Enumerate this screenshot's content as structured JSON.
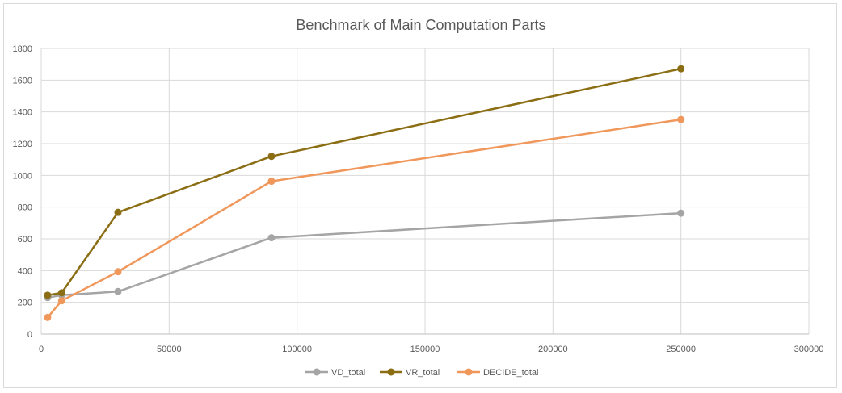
{
  "chart_data": {
    "type": "line",
    "title": "Benchmark of Main Computation Parts",
    "xlabel": "",
    "ylabel": "",
    "xlim": [
      0,
      300000
    ],
    "ylim": [
      0,
      1800
    ],
    "x_ticks": [
      "0",
      "50000",
      "100000",
      "150000",
      "200000",
      "250000",
      "300000"
    ],
    "y_ticks": [
      "0",
      "200",
      "400",
      "600",
      "800",
      "1000",
      "1200",
      "1400",
      "1600",
      "1800"
    ],
    "grid": true,
    "legend_position": "bottom",
    "x": [
      2500,
      8000,
      30000,
      90000,
      250000
    ],
    "series": [
      {
        "name": "VD_total",
        "color": "#a5a5a5",
        "values": [
          230,
          245,
          268,
          607,
          762
        ]
      },
      {
        "name": "VR_total",
        "color": "#8b6e14",
        "values": [
          245,
          260,
          767,
          1120,
          1672
        ]
      },
      {
        "name": "DECIDE_total",
        "color": "#f0975b",
        "values": [
          105,
          210,
          393,
          963,
          1352
        ]
      }
    ]
  }
}
